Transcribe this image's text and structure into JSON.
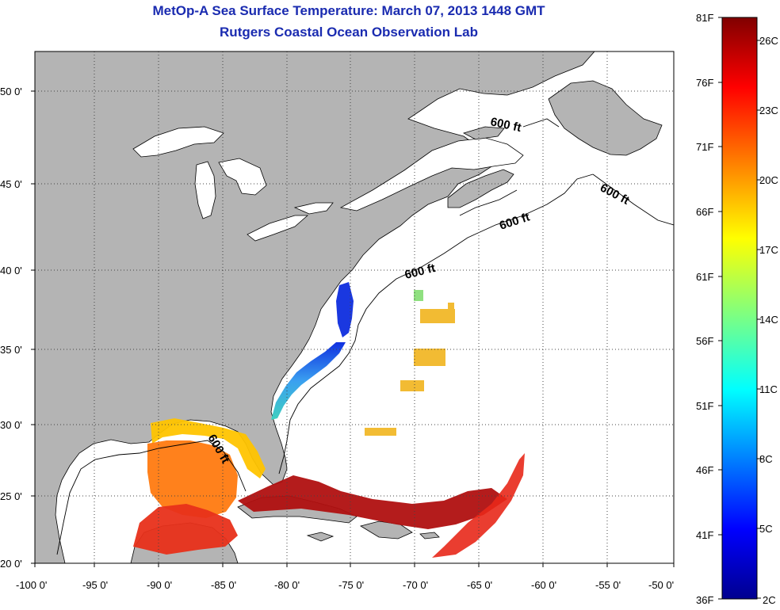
{
  "title": {
    "line1": "MetOp-A Sea Surface Temperature:  March 07, 2013 1448 GMT",
    "line2": "Rutgers Coastal Ocean Observation Lab"
  },
  "map": {
    "x_ticks": [
      "-100 0'",
      "-95 0'",
      "-90 0'",
      "-85 0'",
      "-80 0'",
      "-75 0'",
      "-70 0'",
      "-65 0'",
      "-60 0'",
      "-55 0'",
      "-50 0'"
    ],
    "y_ticks": [
      "50 0'",
      "45 0'",
      "40 0'",
      "35 0'",
      "30 0'",
      "25 0'",
      "20 0'"
    ],
    "isobath_labels": [
      "600 ft",
      "600 ft",
      "600 ft",
      "600 ft",
      "600 ft"
    ],
    "land_color": "#b4b4b4",
    "ocean_color": "#ffffff"
  },
  "colorbar": {
    "fahrenheit_labels": [
      "81F",
      "76F",
      "71F",
      "66F",
      "61F",
      "56F",
      "51F",
      "46F",
      "41F",
      "36F"
    ],
    "celsius_labels": [
      "26C",
      "23C",
      "20C",
      "17C",
      "14C",
      "11C",
      "8C",
      "5C",
      "2C"
    ],
    "colormap": "jet"
  }
}
